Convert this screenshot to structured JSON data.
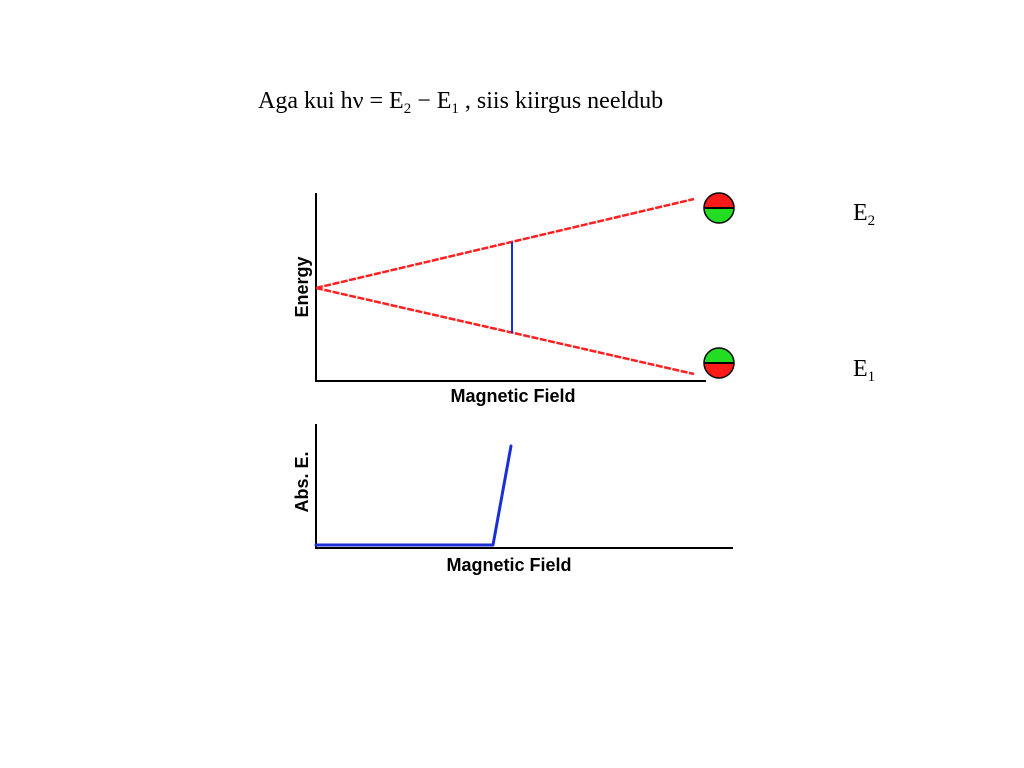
{
  "title": {
    "prefix": "Aga kui  h",
    "nu": "ν",
    "equals": " = E",
    "sub2": "2",
    "minus": " − E",
    "sub1": "1",
    "suffix": " , siis kiirgus neeldub"
  },
  "levels": {
    "upper": {
      "letter": "E",
      "sub": "2"
    },
    "lower": {
      "letter": "E",
      "sub": "1"
    }
  },
  "top_plot": {
    "ylabel": "Energy",
    "xlabel": "Magnetic Field"
  },
  "bottom_plot": {
    "ylabel": "Abs. E.",
    "xlabel": "Magnetic Field"
  },
  "colors": {
    "energy_levels": "#ff2020",
    "transition": "#1a2fd6",
    "absorption": "#1a2fd6",
    "spin_red": "#ff1a1a",
    "spin_green": "#22dd22",
    "axis": "#000000"
  },
  "icons": {
    "upper_spin": "spin-state-red-over-green-icon",
    "lower_spin": "spin-state-green-over-red-icon"
  }
}
